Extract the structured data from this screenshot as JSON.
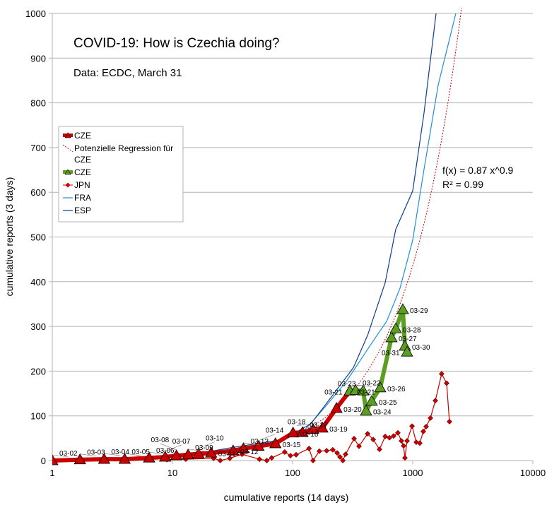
{
  "chart_data": {
    "type": "line",
    "title": "COVID-19: How is Czechia doing?",
    "subtitle": "Data: ECDC, March 31",
    "xlabel": "cumulative reports (14 days)",
    "ylabel": "cumulative reports (3 days)",
    "xscale": "log",
    "xlim": [
      1,
      10000
    ],
    "ylim": [
      0,
      1000
    ],
    "xticks": [
      "1",
      "10",
      "100",
      "1000",
      "10000"
    ],
    "yticks": [
      "0",
      "100",
      "200",
      "300",
      "400",
      "500",
      "600",
      "700",
      "800",
      "900",
      "1000"
    ],
    "grid": "horizontal",
    "legend_position": "left",
    "annotation": {
      "formula": "f(x) = 0.87 x^0.9",
      "r2": "R² = 0.99"
    },
    "regression": {
      "a": 0.87,
      "b": 0.9,
      "color": "#cc0000"
    },
    "series": [
      {
        "name": "CZE",
        "color": "#cc0000",
        "marker": "triangle",
        "points": [
          {
            "x": 1,
            "y": 0,
            "label": "03-02"
          },
          {
            "x": 1.7,
            "y": 2,
            "label": "03-03"
          },
          {
            "x": 2.7,
            "y": 3,
            "label": "03-04"
          },
          {
            "x": 4.0,
            "y": 3,
            "label": "03-05"
          },
          {
            "x": 6.4,
            "y": 6,
            "label": "03-06"
          },
          {
            "x": 8.7,
            "y": 8,
            "label": "03-07"
          },
          {
            "x": 10.8,
            "y": 11,
            "label": "03-08"
          },
          {
            "x": 13.5,
            "y": 13,
            "label": "03-09"
          },
          {
            "x": 16.5,
            "y": 15,
            "label": "03-10"
          },
          {
            "x": 21,
            "y": 17,
            "label": "03-11"
          },
          {
            "x": 32,
            "y": 22,
            "label": "03-12"
          },
          {
            "x": 39,
            "y": 27,
            "label": "03-13"
          },
          {
            "x": 52,
            "y": 32,
            "label": "03-14"
          },
          {
            "x": 72,
            "y": 38,
            "label": "03-15"
          },
          {
            "x": 101,
            "y": 62,
            "label": "03-16"
          },
          {
            "x": 121,
            "y": 63,
            "label": "03-17"
          },
          {
            "x": 148,
            "y": 70,
            "label": "03-18"
          },
          {
            "x": 177,
            "y": 73,
            "label": "03-19"
          },
          {
            "x": 232,
            "y": 117,
            "label": "03-20"
          },
          {
            "x": 300,
            "y": 156,
            "label": "03-21"
          }
        ]
      },
      {
        "name": "CZE",
        "color": "#5c9e1f",
        "marker": "triangle",
        "points": [
          {
            "x": 300,
            "y": 156,
            "label": "03-21"
          },
          {
            "x": 334,
            "y": 157,
            "label": "03-22"
          },
          {
            "x": 387,
            "y": 156,
            "label": "03-23"
          },
          {
            "x": 409,
            "y": 111,
            "label": "03-24"
          },
          {
            "x": 456,
            "y": 133,
            "label": "03-25"
          },
          {
            "x": 536,
            "y": 163,
            "label": "03-26"
          },
          {
            "x": 666,
            "y": 275,
            "label": "03-27"
          },
          {
            "x": 723,
            "y": 295,
            "label": "03-28"
          },
          {
            "x": 827,
            "y": 338,
            "label": "03-29"
          },
          {
            "x": 861,
            "y": 256,
            "label": "03-30"
          },
          {
            "x": 897,
            "y": 243,
            "label": "03-31"
          }
        ]
      },
      {
        "name": "JPN",
        "color": "#cc0000",
        "marker": "diamond",
        "points": [
          {
            "x": 9,
            "y": 2
          },
          {
            "x": 12.9,
            "y": 3
          },
          {
            "x": 22,
            "y": 5
          },
          {
            "x": 25,
            "y": 0
          },
          {
            "x": 30,
            "y": 5
          },
          {
            "x": 38,
            "y": 14
          },
          {
            "x": 53,
            "y": 3
          },
          {
            "x": 61,
            "y": 0
          },
          {
            "x": 67,
            "y": 6
          },
          {
            "x": 86,
            "y": 19
          },
          {
            "x": 96,
            "y": 11
          },
          {
            "x": 107,
            "y": 13
          },
          {
            "x": 137,
            "y": 27
          },
          {
            "x": 148,
            "y": 0
          },
          {
            "x": 167,
            "y": 21
          },
          {
            "x": 192,
            "y": 22
          },
          {
            "x": 216,
            "y": 24
          },
          {
            "x": 235,
            "y": 17
          },
          {
            "x": 248,
            "y": 8
          },
          {
            "x": 262,
            "y": 0
          },
          {
            "x": 276,
            "y": 14
          },
          {
            "x": 325,
            "y": 49
          },
          {
            "x": 357,
            "y": 32
          },
          {
            "x": 421,
            "y": 60
          },
          {
            "x": 469,
            "y": 47
          },
          {
            "x": 529,
            "y": 25
          },
          {
            "x": 590,
            "y": 54
          },
          {
            "x": 640,
            "y": 51
          },
          {
            "x": 694,
            "y": 55
          },
          {
            "x": 752,
            "y": 62
          },
          {
            "x": 805,
            "y": 44
          },
          {
            "x": 839,
            "y": 33
          },
          {
            "x": 861,
            "y": 6
          },
          {
            "x": 897,
            "y": 44
          },
          {
            "x": 987,
            "y": 77
          },
          {
            "x": 1070,
            "y": 41
          },
          {
            "x": 1145,
            "y": 39
          },
          {
            "x": 1225,
            "y": 65
          },
          {
            "x": 1294,
            "y": 76
          },
          {
            "x": 1403,
            "y": 95
          },
          {
            "x": 1543,
            "y": 134
          },
          {
            "x": 1740,
            "y": 194
          },
          {
            "x": 1915,
            "y": 173
          },
          {
            "x": 2022,
            "y": 87
          }
        ]
      },
      {
        "name": "FRA",
        "color": "#1f8fdb",
        "marker": "none",
        "points": [
          {
            "x": 9.5,
            "y": 6
          },
          {
            "x": 21,
            "y": 19
          },
          {
            "x": 63,
            "y": 38
          },
          {
            "x": 124,
            "y": 66
          },
          {
            "x": 187,
            "y": 120
          },
          {
            "x": 280,
            "y": 177
          },
          {
            "x": 481,
            "y": 272
          },
          {
            "x": 606,
            "y": 311
          },
          {
            "x": 783,
            "y": 385
          },
          {
            "x": 1000,
            "y": 493
          },
          {
            "x": 1241,
            "y": 651
          },
          {
            "x": 1629,
            "y": 840
          },
          {
            "x": 2284,
            "y": 1000
          }
        ]
      },
      {
        "name": "ESP",
        "color": "#0d3f8a",
        "marker": "none",
        "points": [
          {
            "x": 10.8,
            "y": 6
          },
          {
            "x": 28,
            "y": 27
          },
          {
            "x": 83,
            "y": 47
          },
          {
            "x": 142,
            "y": 82
          },
          {
            "x": 214,
            "y": 145
          },
          {
            "x": 321,
            "y": 208
          },
          {
            "x": 421,
            "y": 280
          },
          {
            "x": 590,
            "y": 398
          },
          {
            "x": 722,
            "y": 517
          },
          {
            "x": 1000,
            "y": 603
          },
          {
            "x": 1241,
            "y": 777
          },
          {
            "x": 1564,
            "y": 1000
          }
        ]
      }
    ],
    "legend": [
      {
        "label": "CZE",
        "kind": "bar-triangle",
        "color": "#cc0000"
      },
      {
        "label": "Potenzielle Regression für CZE",
        "kind": "dotted",
        "color": "#cc0000"
      },
      {
        "label": "CZE",
        "kind": "bar-triangle",
        "color": "#5c9e1f"
      },
      {
        "label": "JPN",
        "kind": "line-diamond",
        "color": "#cc0000"
      },
      {
        "label": "FRA",
        "kind": "line",
        "color": "#1f8fdb"
      },
      {
        "label": "ESP",
        "kind": "line",
        "color": "#0d3f8a"
      }
    ]
  }
}
